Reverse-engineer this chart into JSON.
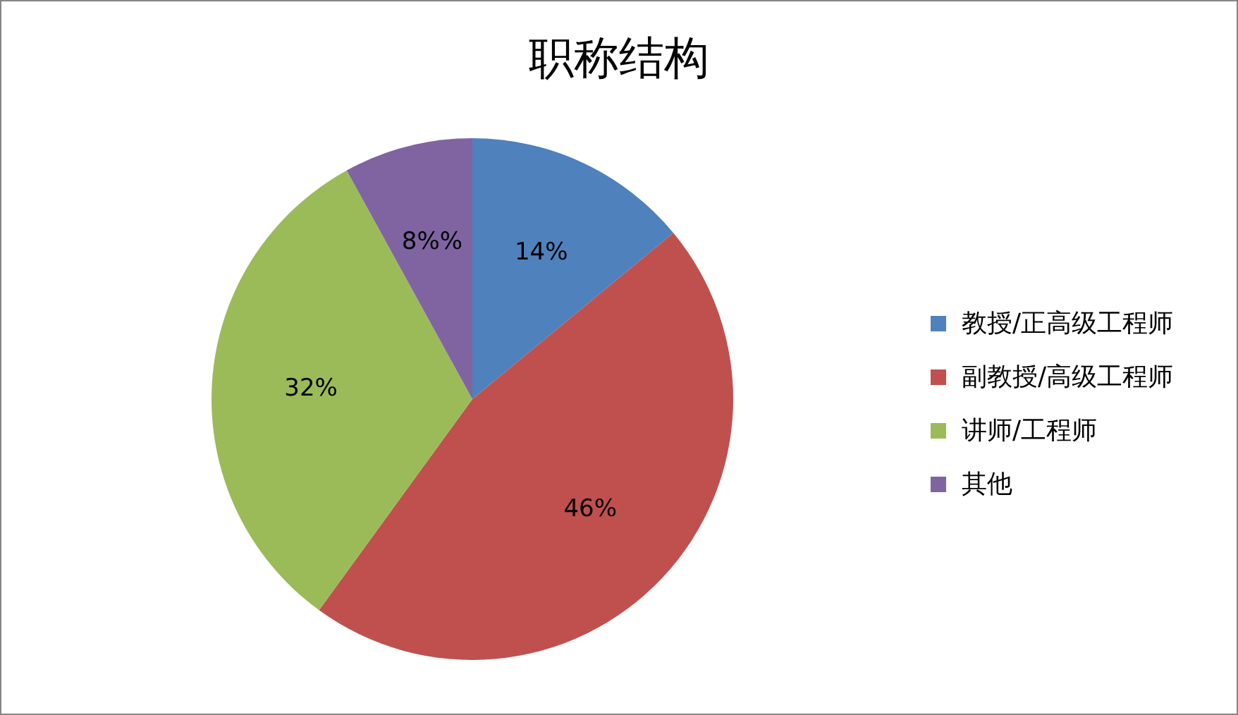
{
  "chart_data": {
    "type": "pie",
    "title": "职称结构",
    "categories": [
      "教授/正高级工程师",
      "副教授/高级工程师",
      "讲师/工程师",
      "其他"
    ],
    "values": [
      14,
      46,
      32,
      8
    ],
    "colors": [
      "#4f81bd",
      "#c0504d",
      "#9bbb59",
      "#8064a2"
    ],
    "value_labels": [
      "14%",
      "46%",
      "32%",
      "8%%"
    ],
    "legend": "right"
  }
}
